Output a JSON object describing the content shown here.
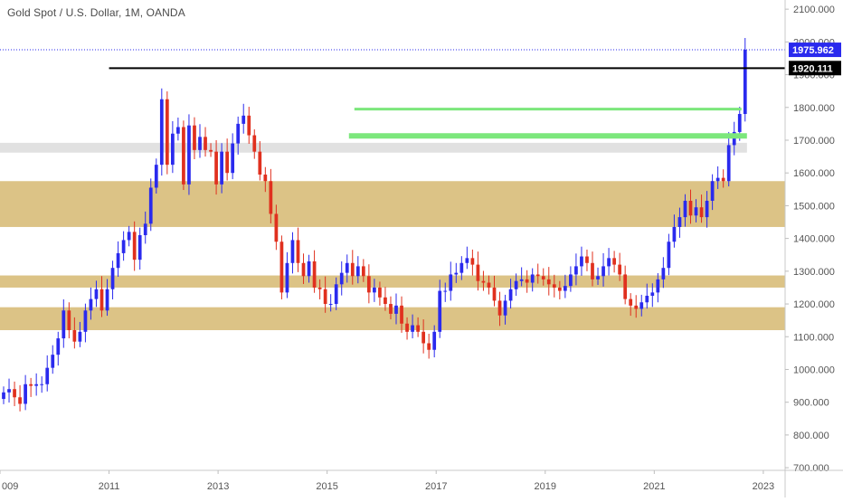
{
  "header": {
    "title": "Gold Spot / U.S. Dollar, 1M, OANDA"
  },
  "chart_data": {
    "type": "candlestick",
    "title": "Gold Spot / U.S. Dollar, 1M, OANDA",
    "symbol": "Gold Spot / U.S. Dollar",
    "interval": "1M",
    "source": "OANDA",
    "xlabel": "",
    "ylabel": "",
    "x_ticks": [
      "009",
      "2011",
      "2013",
      "2015",
      "2017",
      "2019",
      "2021",
      "2023"
    ],
    "x_range": [
      2009.0,
      2023.4
    ],
    "y_ticks": [
      "2100.000",
      "2000.000",
      "1900.000",
      "1800.000",
      "1700.000",
      "1600.000",
      "1500.000",
      "1400.000",
      "1300.000",
      "1200.000",
      "1100.000",
      "1000.000",
      "900.000",
      "800.000",
      "700.000"
    ],
    "ylim": [
      692,
      2128
    ],
    "grid": false,
    "colors": {
      "up": "#2a2aee",
      "down": "#e0301e",
      "zone": "#dcc386",
      "grey_zone": "#e1e1e1",
      "green_line": "#7ce77c",
      "resistance_line": "#000000",
      "current_price_line": "#2a2aee"
    },
    "price_labels": [
      {
        "value": 1975.962,
        "label": "1975.962",
        "color": "#2a2aee"
      },
      {
        "value": 1920.111,
        "label": "1920.111",
        "color": "#000000"
      }
    ],
    "annotations": [
      {
        "kind": "hline",
        "y": 1920,
        "x_start": 2011.0,
        "x_end": 2023.4,
        "color": "#000000"
      },
      {
        "kind": "hline",
        "y": 1795,
        "x_start": 2015.5,
        "x_end": 2022.6,
        "color": "#7ce77c"
      },
      {
        "kind": "hline",
        "y": 1713,
        "x_start": 2015.4,
        "x_end": 2022.7,
        "color": "#7ce77c"
      },
      {
        "kind": "zone",
        "y1": 1662,
        "y2": 1692,
        "x_start": 2009.0,
        "x_end": 2022.7,
        "color": "#e1e1e1"
      },
      {
        "kind": "zone",
        "y1": 1435,
        "y2": 1575,
        "x_start": 2009.0,
        "x_end": 2023.4,
        "color": "#dcc386"
      },
      {
        "kind": "zone",
        "y1": 1250,
        "y2": 1287,
        "x_start": 2009.0,
        "x_end": 2023.4,
        "color": "#dcc386"
      },
      {
        "kind": "zone",
        "y1": 1120,
        "y2": 1190,
        "x_start": 2009.0,
        "x_end": 2023.4,
        "color": "#dcc386"
      }
    ],
    "closes": [
      [
        2009.0,
        930
      ],
      [
        2009.1,
        940
      ],
      [
        2009.2,
        915
      ],
      [
        2009.3,
        895
      ],
      [
        2009.4,
        955
      ],
      [
        2009.5,
        950
      ],
      [
        2009.6,
        955
      ],
      [
        2009.7,
        955
      ],
      [
        2009.8,
        1005
      ],
      [
        2009.9,
        1045
      ],
      [
        2010.0,
        1095
      ],
      [
        2010.1,
        1180
      ],
      [
        2010.2,
        1120
      ],
      [
        2010.3,
        1085
      ],
      [
        2010.4,
        1115
      ],
      [
        2010.5,
        1180
      ],
      [
        2010.6,
        1215
      ],
      [
        2010.7,
        1245
      ],
      [
        2010.8,
        1180
      ],
      [
        2010.9,
        1245
      ],
      [
        2011.0,
        1310
      ],
      [
        2011.1,
        1355
      ],
      [
        2011.2,
        1395
      ],
      [
        2011.3,
        1420
      ],
      [
        2011.4,
        1335
      ],
      [
        2011.5,
        1410
      ],
      [
        2011.6,
        1445
      ],
      [
        2011.7,
        1555
      ],
      [
        2011.8,
        1625
      ],
      [
        2011.9,
        1825
      ],
      [
        2012.0,
        1625
      ],
      [
        2012.1,
        1720
      ],
      [
        2012.2,
        1740
      ],
      [
        2012.3,
        1565
      ],
      [
        2012.4,
        1745
      ],
      [
        2012.5,
        1670
      ],
      [
        2012.6,
        1710
      ],
      [
        2012.7,
        1670
      ],
      [
        2012.8,
        1665
      ],
      [
        2012.9,
        1565
      ],
      [
        2013.0,
        1665
      ],
      [
        2013.1,
        1600
      ],
      [
        2013.2,
        1690
      ],
      [
        2013.3,
        1750
      ],
      [
        2013.4,
        1775
      ],
      [
        2013.5,
        1715
      ],
      [
        2013.6,
        1665
      ],
      [
        2013.7,
        1595
      ],
      [
        2013.8,
        1575
      ],
      [
        2013.9,
        1475
      ],
      [
        2014.0,
        1390
      ],
      [
        2014.1,
        1235
      ],
      [
        2014.2,
        1325
      ],
      [
        2014.3,
        1395
      ],
      [
        2014.4,
        1325
      ],
      [
        2014.5,
        1285
      ],
      [
        2014.6,
        1330
      ],
      [
        2014.7,
        1250
      ],
      [
        2014.8,
        1245
      ],
      [
        2014.9,
        1200
      ],
      [
        2015.0,
        1200
      ],
      [
        2015.1,
        1260
      ],
      [
        2015.2,
        1295
      ],
      [
        2015.3,
        1325
      ],
      [
        2015.4,
        1285
      ],
      [
        2015.5,
        1315
      ],
      [
        2015.6,
        1285
      ],
      [
        2015.7,
        1235
      ],
      [
        2015.8,
        1250
      ],
      [
        2015.9,
        1220
      ],
      [
        2016.0,
        1200
      ],
      [
        2016.1,
        1170
      ],
      [
        2016.2,
        1195
      ],
      [
        2016.3,
        1140
      ],
      [
        2016.4,
        1115
      ],
      [
        2016.5,
        1135
      ],
      [
        2016.6,
        1115
      ],
      [
        2016.7,
        1080
      ],
      [
        2016.8,
        1060
      ],
      [
        2016.9,
        1115
      ],
      [
        2017.0,
        1240
      ],
      [
        2017.1,
        1240
      ],
      [
        2017.2,
        1290
      ],
      [
        2017.3,
        1295
      ],
      [
        2017.4,
        1325
      ],
      [
        2017.5,
        1340
      ],
      [
        2017.6,
        1320
      ],
      [
        2017.7,
        1270
      ],
      [
        2017.8,
        1265
      ],
      [
        2017.9,
        1250
      ],
      [
        2018.0,
        1210
      ],
      [
        2018.1,
        1165
      ],
      [
        2018.2,
        1210
      ],
      [
        2018.3,
        1245
      ],
      [
        2018.4,
        1270
      ],
      [
        2018.5,
        1275
      ],
      [
        2018.6,
        1265
      ],
      [
        2018.7,
        1290
      ],
      [
        2018.8,
        1285
      ],
      [
        2018.9,
        1275
      ],
      [
        2019.0,
        1260
      ],
      [
        2019.1,
        1250
      ],
      [
        2019.2,
        1240
      ],
      [
        2019.3,
        1255
      ],
      [
        2019.4,
        1290
      ],
      [
        2019.5,
        1315
      ],
      [
        2019.6,
        1345
      ],
      [
        2019.7,
        1325
      ],
      [
        2019.8,
        1275
      ],
      [
        2019.9,
        1285
      ],
      [
        2020.0,
        1315
      ],
      [
        2020.1,
        1340
      ],
      [
        2020.2,
        1320
      ],
      [
        2020.3,
        1290
      ],
      [
        2020.4,
        1215
      ],
      [
        2020.5,
        1195
      ],
      [
        2020.6,
        1185
      ],
      [
        2020.7,
        1205
      ],
      [
        2020.8,
        1225
      ],
      [
        2020.9,
        1235
      ],
      [
        2021.0,
        1275
      ],
      [
        2021.1,
        1310
      ],
      [
        2021.2,
        1390
      ],
      [
        2021.3,
        1435
      ],
      [
        2021.4,
        1465
      ],
      [
        2021.5,
        1515
      ],
      [
        2021.6,
        1470
      ],
      [
        2021.7,
        1495
      ],
      [
        2021.8,
        1465
      ],
      [
        2021.9,
        1515
      ],
      [
        2022.0,
        1575
      ],
      [
        2022.1,
        1585
      ],
      [
        2022.2,
        1575
      ],
      [
        2022.3,
        1685
      ],
      [
        2022.4,
        1725
      ],
      [
        2022.5,
        1780
      ],
      [
        2022.6,
        1976
      ]
    ]
  }
}
